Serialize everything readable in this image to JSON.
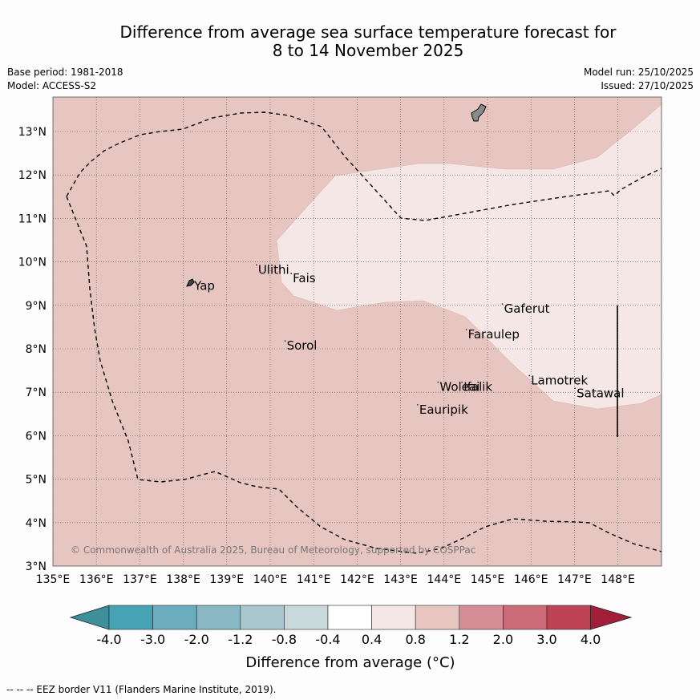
{
  "title": {
    "line1": "Difference from average sea surface temperature forecast for",
    "line2": "8 to 14 November 2025"
  },
  "meta": {
    "base_period": "Base period: 1981-2018",
    "model": "Model: ACCESS-S2",
    "model_run": "Model run: 25/10/2025",
    "issued": "Issued: 27/10/2025"
  },
  "map": {
    "lon_range": [
      135,
      149
    ],
    "lat_range": [
      3,
      13.8
    ],
    "x_ticks": [
      "135°E",
      "136°E",
      "137°E",
      "138°E",
      "139°E",
      "140°E",
      "141°E",
      "142°E",
      "143°E",
      "144°E",
      "145°E",
      "146°E",
      "147°E",
      "148°E"
    ],
    "y_ticks": [
      "3°N",
      "4°N",
      "5°N",
      "6°N",
      "7°N",
      "8°N",
      "9°N",
      "10°N",
      "11°N",
      "12°N",
      "13°N"
    ],
    "places": [
      {
        "name": "Yap",
        "lon": 138.25,
        "lat": 9.45
      },
      {
        "name": "Ulithi",
        "lon": 139.72,
        "lat": 9.82
      },
      {
        "name": "Fais",
        "lon": 140.52,
        "lat": 9.62
      },
      {
        "name": "Sorol",
        "lon": 140.38,
        "lat": 8.07
      },
      {
        "name": "Gaferut",
        "lon": 145.38,
        "lat": 8.92
      },
      {
        "name": "Faraulep",
        "lon": 144.55,
        "lat": 8.33
      },
      {
        "name": "Woleai",
        "lon": 143.9,
        "lat": 7.12
      },
      {
        "name": "Ifalik",
        "lon": 144.45,
        "lat": 7.12
      },
      {
        "name": "Lamotrek",
        "lon": 146.0,
        "lat": 7.27
      },
      {
        "name": "Satawal",
        "lon": 147.05,
        "lat": 6.98
      },
      {
        "name": "Eauripik",
        "lon": 143.43,
        "lat": 6.6
      }
    ],
    "copyright": "© Commonwealth of Australia 2025, Bureau of Meteorology, supported by COSPPac",
    "colors": {
      "anomaly_0_8_to_1_2": "#e7c6c2",
      "anomaly_0_4_to_0_8": "#f4e7e5",
      "land": "#8a8a8a"
    }
  },
  "colorbar": {
    "ticks": [
      "-4.0",
      "-3.0",
      "-2.0",
      "-1.2",
      "-0.8",
      "-0.4",
      "0.4",
      "0.8",
      "1.2",
      "2.0",
      "3.0",
      "4.0"
    ],
    "colors": [
      "#3d8f9b",
      "#46a3b5",
      "#6cadbd",
      "#8ab8c4",
      "#a8c7ce",
      "#c8d9dc",
      "#ffffff",
      "#f4e7e5",
      "#e7c6c2",
      "#d68e96",
      "#cb6b78",
      "#be4354",
      "#a21f3a"
    ],
    "label": "Difference from average (°C)"
  },
  "footer": "--  --  -- EEZ border V11 (Flanders Marine Institute, 2019)."
}
